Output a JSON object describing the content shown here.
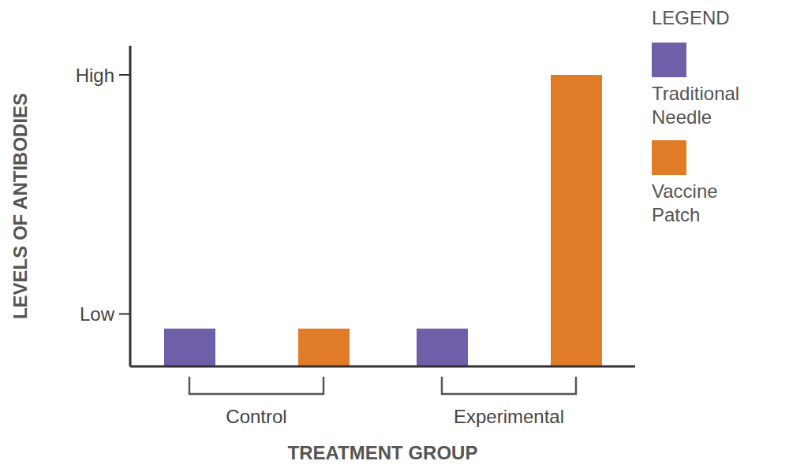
{
  "chart_data": {
    "type": "bar",
    "categories": [
      "Control",
      "Experimental"
    ],
    "series": [
      {
        "name": "Traditional Needle",
        "color": "#6f5ea8",
        "values": [
          1.3,
          1.3
        ]
      },
      {
        "name": "Vaccine Patch",
        "color": "#e07b28",
        "values": [
          1.3,
          10
        ]
      }
    ],
    "x_label": "TREATMENT GROUP",
    "y_label": "LEVELS OF ANTIBODIES",
    "ylim": [
      0,
      11
    ],
    "yticks": [
      {
        "value": 1.8,
        "label": "Low"
      },
      {
        "value": 10,
        "label": "High"
      }
    ],
    "grid": false,
    "legend": "right",
    "legend_title": "LEGEND"
  }
}
